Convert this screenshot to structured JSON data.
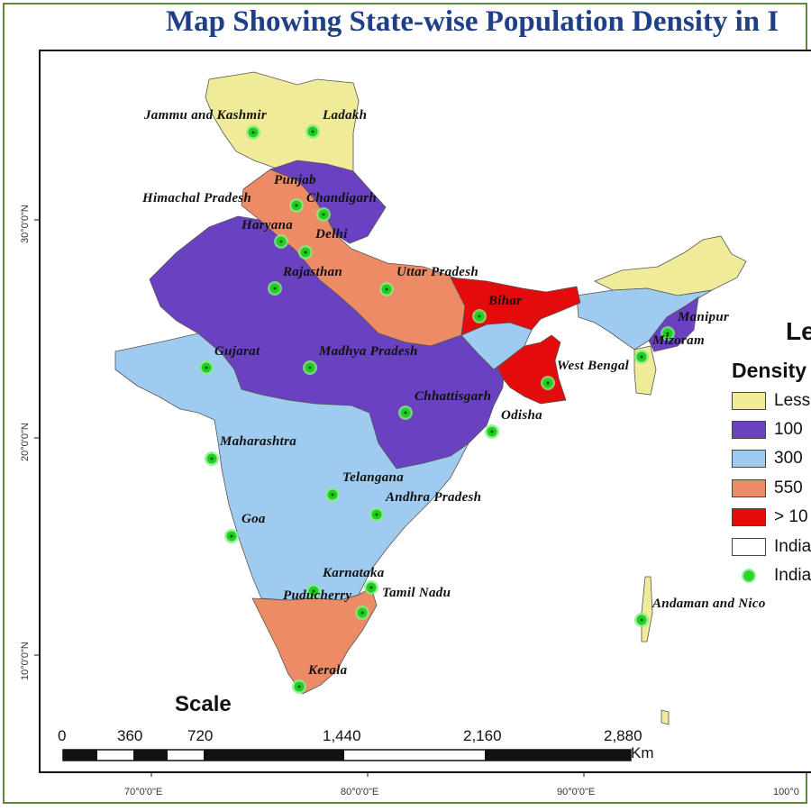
{
  "title": "Map Showing State-wise Population Density in I",
  "legend": {
    "heading": "Le",
    "subheading": "Density",
    "classes": [
      {
        "label": "Less",
        "color": "#efeb98"
      },
      {
        "label": "100",
        "color": "#6a41c0"
      },
      {
        "label": "300",
        "color": "#9ecbef"
      },
      {
        "label": "550",
        "color": "#ec8b66"
      },
      {
        "label": "> 10",
        "color": "#e30b0b"
      }
    ],
    "boundary_label": "India",
    "point_label": "India"
  },
  "latitude_ticks": [
    "30°0'0\"N",
    "20°0'0\"N",
    "10°0'0\"N"
  ],
  "longitude_ticks": [
    "70°0'0\"E",
    "80°0'0\"E",
    "90°0'0\"E",
    "100°0"
  ],
  "scale": {
    "title": "Scale",
    "values": [
      "0",
      "360",
      "720",
      "1,440",
      "2,160",
      "2,880"
    ],
    "unit": "Km"
  },
  "states": [
    "Jammu and Kashmir",
    "Ladakh",
    "Punjab",
    "Himachal Pradesh",
    "Chandigarh",
    "Haryana",
    "Delhi",
    "Rajasthan",
    "Uttar Pradesh",
    "Bihar",
    "Manipur",
    "Mizoram",
    "Gujarat",
    "Madhya Pradesh",
    "West Bengal",
    "Chhattisgarh",
    "Odisha",
    "Maharashtra",
    "Telangana",
    "Andhra Pradesh",
    "Goa",
    "Karnataka",
    "Puducherry",
    "Tamil Nadu",
    "Andaman and Nico",
    "Kerala"
  ]
}
